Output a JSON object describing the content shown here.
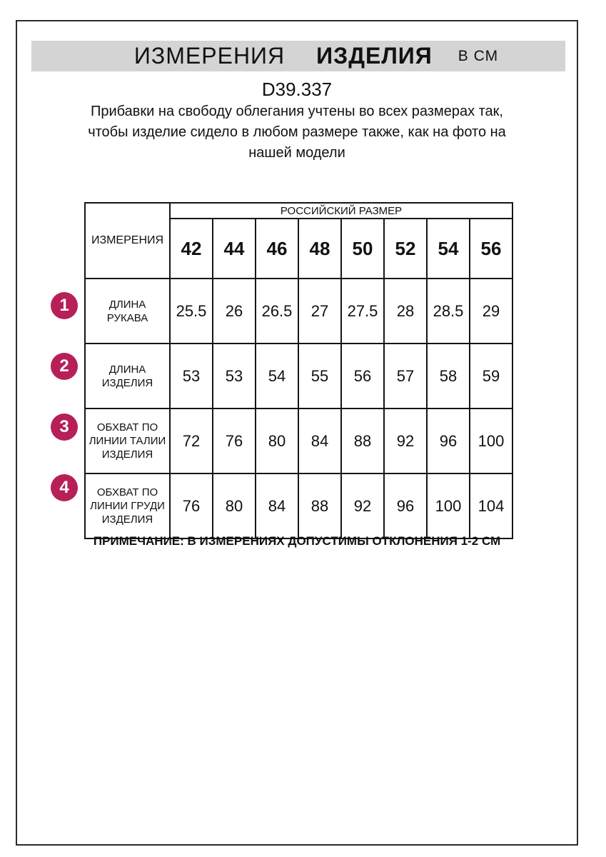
{
  "banner": {
    "word1": "ИЗМЕРЕНИЯ",
    "word2": "ИЗДЕЛИЯ",
    "units": "В СМ"
  },
  "product_code": "D39.337",
  "description": "Прибавки на свободу облегания учтены во всех размерах так, чтобы изделие сидело в любом размере также, как на фото на нашей модели",
  "table": {
    "corner_label": "ИЗМЕРЕНИЯ",
    "group_header": "РОССИЙСКИЙ РАЗМЕР",
    "sizes": [
      "42",
      "44",
      "46",
      "48",
      "50",
      "52",
      "54",
      "56"
    ],
    "rows": [
      {
        "num": "1",
        "label": "ДЛИНА РУКАВА",
        "values": [
          "25.5",
          "26",
          "26.5",
          "27",
          "27.5",
          "28",
          "28.5",
          "29"
        ]
      },
      {
        "num": "2",
        "label": "ДЛИНА\nИЗДЕЛИЯ",
        "values": [
          "53",
          "53",
          "54",
          "55",
          "56",
          "57",
          "58",
          "59"
        ]
      },
      {
        "num": "3",
        "label": "ОБХВАТ ПО\nЛИНИИ ТАЛИИ\nИЗДЕЛИЯ",
        "values": [
          "72",
          "76",
          "80",
          "84",
          "88",
          "92",
          "96",
          "100"
        ]
      },
      {
        "num": "4",
        "label": "ОБХВАТ ПО\nЛИНИИ ГРУДИ\nИЗДЕЛИЯ",
        "values": [
          "76",
          "80",
          "84",
          "88",
          "92",
          "96",
          "100",
          "104"
        ]
      }
    ]
  },
  "note": "ПРИМЕЧАНИЕ: В ИЗМЕРЕНИЯХ ДОПУСТИМЫ ОТКЛОНЕНИЯ 1-2 СМ",
  "colors": {
    "accent_badge": "#b71f58",
    "banner_bg": "#d4d4d4",
    "border": "#2c2c2c"
  },
  "chart_data": {
    "type": "table",
    "title": "ИЗМЕРЕНИЯ ИЗДЕЛИЯ В СМ",
    "subtitle": "D39.337",
    "categories": [
      "42",
      "44",
      "46",
      "48",
      "50",
      "52",
      "54",
      "56"
    ],
    "series": [
      {
        "name": "ДЛИНА РУКАВА",
        "values": [
          25.5,
          26,
          26.5,
          27,
          27.5,
          28,
          28.5,
          29
        ]
      },
      {
        "name": "ДЛИНА ИЗДЕЛИЯ",
        "values": [
          53,
          53,
          54,
          55,
          56,
          57,
          58,
          59
        ]
      },
      {
        "name": "ОБХВАТ ПО ЛИНИИ ТАЛИИ ИЗДЕЛИЯ",
        "values": [
          72,
          76,
          80,
          84,
          88,
          92,
          96,
          100
        ]
      },
      {
        "name": "ОБХВАТ ПО ЛИНИИ ГРУДИ ИЗДЕЛИЯ",
        "values": [
          76,
          80,
          84,
          88,
          92,
          96,
          100,
          104
        ]
      }
    ]
  }
}
